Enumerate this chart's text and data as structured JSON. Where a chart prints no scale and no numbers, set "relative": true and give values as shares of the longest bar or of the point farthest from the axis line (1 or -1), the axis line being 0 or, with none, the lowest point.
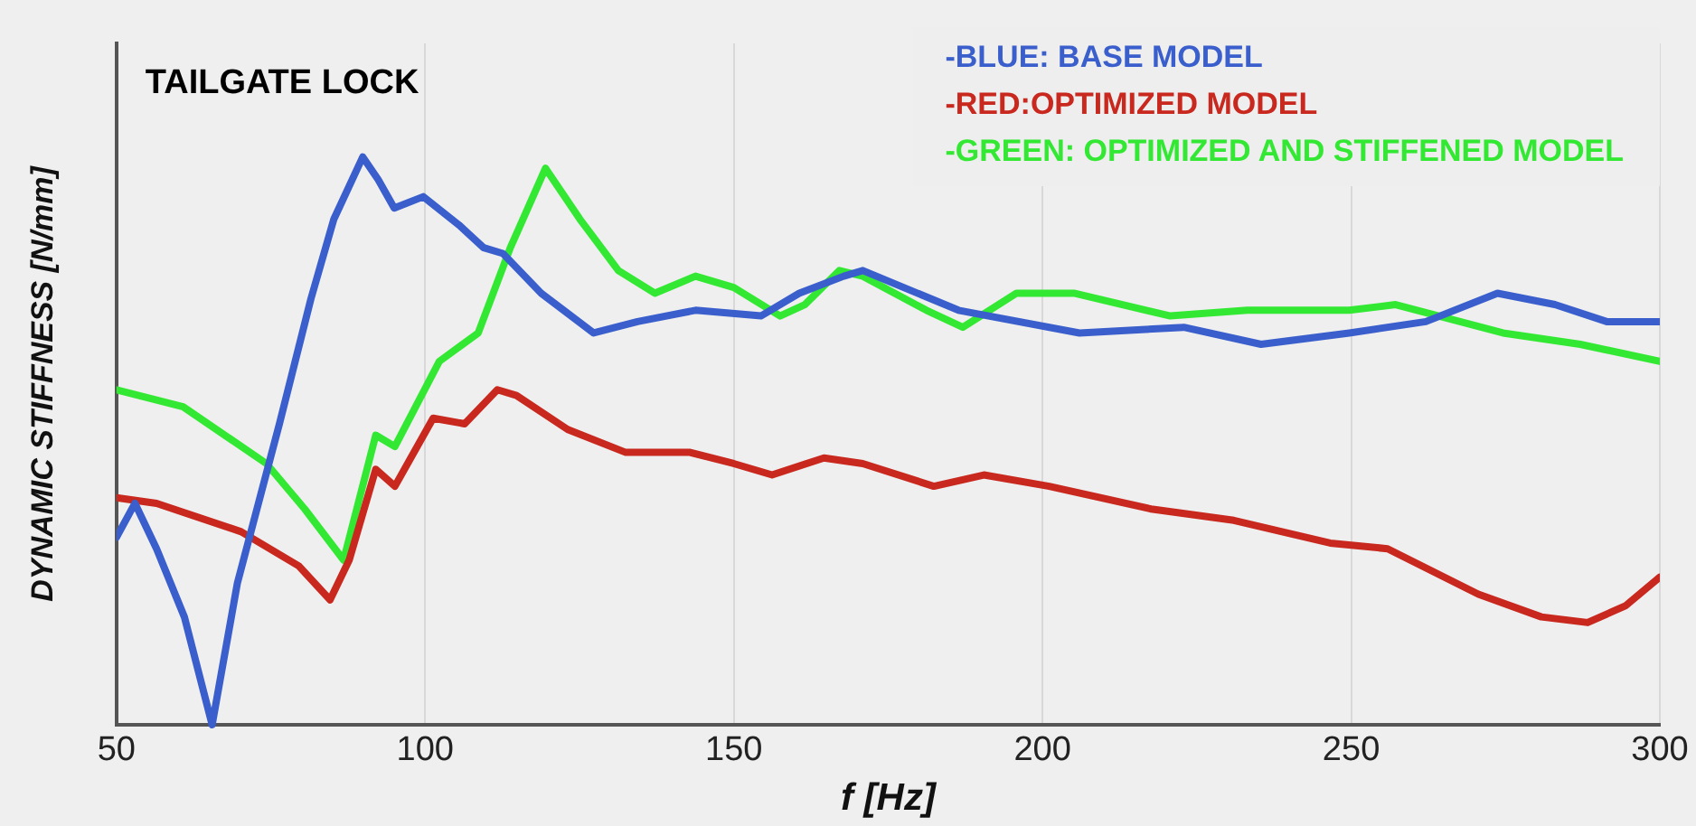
{
  "chart_data": {
    "type": "line",
    "title": "TAILGATE LOCK",
    "xlabel": "f [Hz]",
    "ylabel": "DYNAMIC STIFFNESS [N/mm]",
    "relative": true,
    "xlim": [
      50,
      300
    ],
    "xticks": [
      50,
      100,
      150,
      200,
      250,
      300
    ],
    "grid": "x",
    "legend": "top right",
    "marker": "none",
    "line_style": "solid",
    "series": [
      {
        "name": "-BLUE: BASE MODEL",
        "color": "#3a5fcd",
        "x": [
          50,
          53,
          56.5,
          61,
          65.5,
          69.6,
          76.4,
          81.5,
          85.2,
          89.9,
          92.4,
          95,
          99.7,
          105.5,
          109.5,
          112.6,
          118.8,
          127.3,
          134.4,
          143.8,
          154.4,
          160.6,
          167.8,
          170.9,
          186.4,
          206,
          222.9,
          235.4,
          249.7,
          262.1,
          273.7,
          283,
          291.4,
          300
        ],
        "values": [
          0.33,
          0.39,
          0.31,
          0.19,
          0,
          0.25,
          0.53,
          0.75,
          0.89,
          1,
          0.96,
          0.91,
          0.93,
          0.88,
          0.84,
          0.83,
          0.76,
          0.69,
          0.71,
          0.73,
          0.72,
          0.76,
          0.79,
          0.8,
          0.73,
          0.69,
          0.7,
          0.67,
          0.69,
          0.71,
          0.76,
          0.74,
          0.71,
          0.71
        ]
      },
      {
        "name": "-RED:OPTIMIZED MODEL",
        "color": "#c8281e",
        "x": [
          50,
          56.5,
          70.2,
          79.5,
          84.6,
          87.7,
          92,
          95.1,
          101.3,
          106.4,
          111.7,
          114.8,
          123.1,
          132.4,
          142.8,
          150,
          156.2,
          164.6,
          170.9,
          182.4,
          190.5,
          201.1,
          217.6,
          231,
          246.6,
          255.9,
          270.6,
          280.8,
          288.3,
          294.5,
          300
        ],
        "values": [
          0.4,
          0.39,
          0.34,
          0.28,
          0.22,
          0.29,
          0.45,
          0.42,
          0.54,
          0.53,
          0.59,
          0.58,
          0.52,
          0.48,
          0.48,
          0.46,
          0.44,
          0.47,
          0.46,
          0.42,
          0.44,
          0.42,
          0.38,
          0.36,
          0.32,
          0.31,
          0.23,
          0.19,
          0.18,
          0.21,
          0.26
        ]
      },
      {
        "name": "-GREEN: OPTIMIZED AND STIFFENED MODEL",
        "color": "#33e833",
        "x": [
          50,
          60.8,
          74.3,
          80.5,
          86.8,
          92,
          95.1,
          102.3,
          108.6,
          113.8,
          119.5,
          125.1,
          131.3,
          137.2,
          143.8,
          150,
          157.5,
          161.5,
          167.1,
          170.9,
          181.2,
          187.1,
          195.8,
          205.1,
          220.7,
          233.2,
          249.7,
          257.2,
          274.6,
          287.1,
          300
        ],
        "values": [
          0.59,
          0.56,
          0.46,
          0.38,
          0.29,
          0.51,
          0.49,
          0.64,
          0.69,
          0.84,
          0.98,
          0.89,
          0.8,
          0.76,
          0.79,
          0.77,
          0.72,
          0.74,
          0.8,
          0.79,
          0.73,
          0.7,
          0.76,
          0.76,
          0.72,
          0.73,
          0.73,
          0.74,
          0.69,
          0.67,
          0.64
        ]
      }
    ]
  }
}
